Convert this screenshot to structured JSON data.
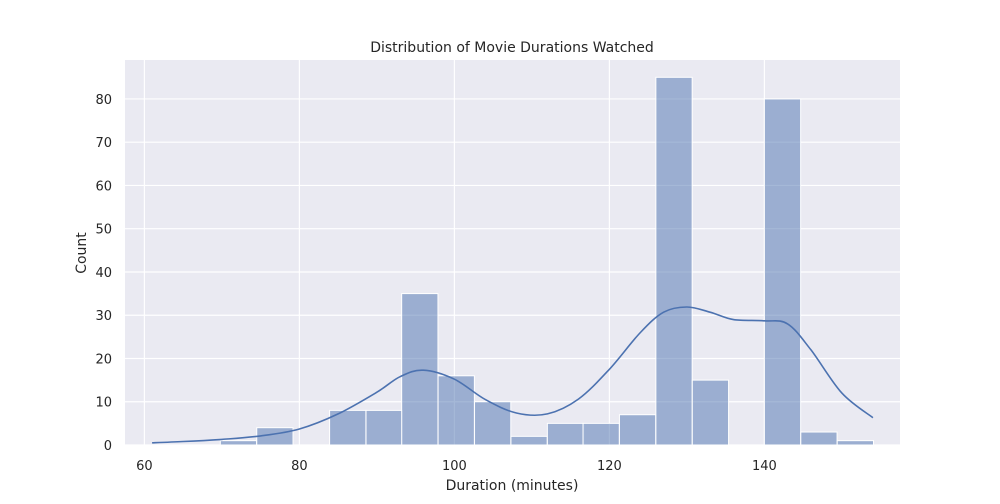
{
  "chart_data": {
    "type": "bar",
    "title": "Distribution of Movie Durations Watched",
    "xlabel": "Duration (minutes)",
    "ylabel": "Count",
    "xlim": [
      57.5,
      157.5
    ],
    "ylim": [
      0,
      89
    ],
    "x_ticks": [
      60,
      80,
      100,
      120,
      140
    ],
    "y_ticks": [
      0,
      10,
      20,
      30,
      40,
      50,
      60,
      70,
      80
    ],
    "bin_width": 4.68,
    "bins": [
      {
        "start": 60.5,
        "count": 0
      },
      {
        "start": 65.2,
        "count": 0
      },
      {
        "start": 69.8,
        "count": 1
      },
      {
        "start": 74.5,
        "count": 4
      },
      {
        "start": 79.2,
        "count": 0
      },
      {
        "start": 83.9,
        "count": 8
      },
      {
        "start": 88.6,
        "count": 8
      },
      {
        "start": 93.2,
        "count": 35
      },
      {
        "start": 97.9,
        "count": 16
      },
      {
        "start": 102.6,
        "count": 10
      },
      {
        "start": 107.3,
        "count": 2
      },
      {
        "start": 112.0,
        "count": 5
      },
      {
        "start": 116.6,
        "count": 5
      },
      {
        "start": 121.3,
        "count": 7
      },
      {
        "start": 126.0,
        "count": 85
      },
      {
        "start": 130.7,
        "count": 15
      },
      {
        "start": 135.4,
        "count": 0
      },
      {
        "start": 140.0,
        "count": 80
      },
      {
        "start": 144.7,
        "count": 3
      },
      {
        "start": 149.4,
        "count": 1
      }
    ],
    "kde": {
      "x": [
        61,
        65,
        70,
        75,
        80,
        85,
        90,
        93,
        96,
        100,
        104,
        108,
        112,
        116,
        120,
        124,
        127,
        130,
        133,
        136,
        140,
        143,
        146,
        150,
        154
      ],
      "y": [
        0.5,
        0.8,
        1.3,
        2.1,
        3.7,
        7.2,
        12.2,
        15.8,
        17.3,
        15.2,
        10.5,
        7.4,
        7.2,
        10.6,
        17.5,
        26.0,
        30.7,
        31.9,
        30.7,
        29.0,
        28.7,
        28.0,
        22.0,
        12.0,
        6.3
      ]
    },
    "bar_color": "#4c72b0",
    "bar_opacity": 0.5,
    "line_color": "#4c72b0",
    "background_color": "#eaeaf2",
    "grid": true
  }
}
